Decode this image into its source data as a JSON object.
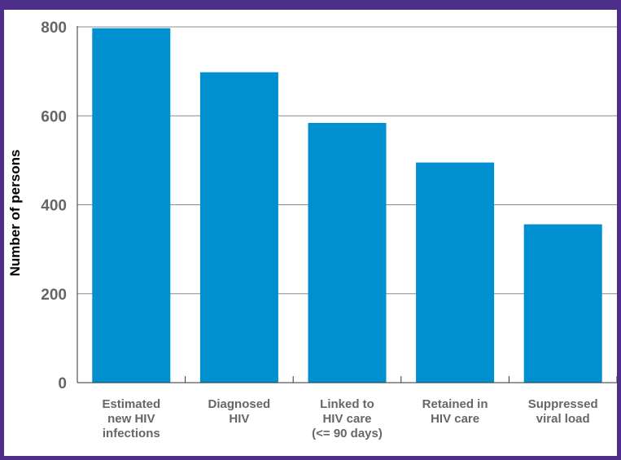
{
  "chart_data": {
    "type": "bar",
    "categories": [
      [
        "Estimated",
        "new HIV",
        "infections"
      ],
      [
        "Diagnosed",
        "HIV"
      ],
      [
        "Linked to",
        "HIV care",
        "(<= 90 days)"
      ],
      [
        "Retained in",
        "HIV care"
      ],
      [
        "Suppressed",
        "viral load"
      ]
    ],
    "values": [
      797,
      698,
      584,
      495,
      356
    ],
    "title": "",
    "xlabel": "",
    "ylabel": "Number of persons",
    "ylim": [
      0,
      800
    ],
    "yticks": [
      0,
      200,
      400,
      600,
      800
    ],
    "grid": true,
    "legend": "none",
    "colors": {
      "bar": "#0090d0",
      "grid": "#8c8c8c",
      "axis": "#333333",
      "border": "#4d2f8a"
    }
  }
}
